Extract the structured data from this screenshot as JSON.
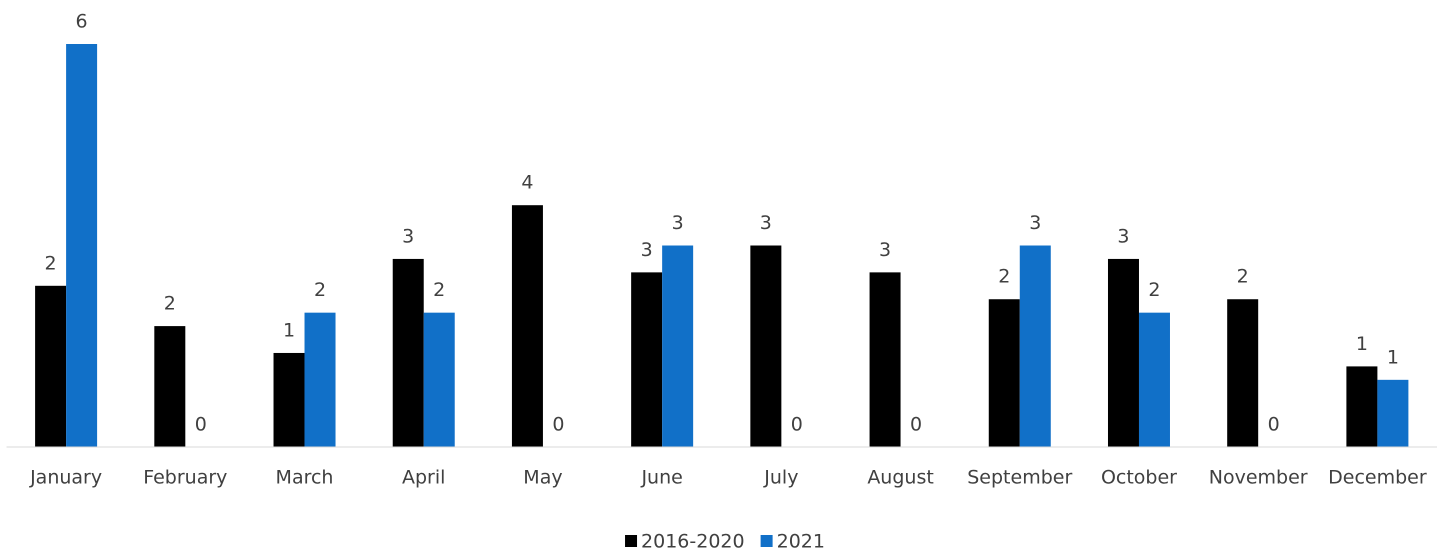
{
  "chart_data": {
    "type": "bar",
    "categories": [
      "January",
      "February",
      "March",
      "April",
      "May",
      "June",
      "July",
      "August",
      "September",
      "October",
      "November",
      "December"
    ],
    "series": [
      {
        "name": "2016-2020",
        "color": "#000000",
        "values": [
          2.4,
          1.8,
          1.4,
          2.8,
          3.6,
          2.6,
          3.0,
          2.6,
          2.2,
          2.8,
          2.2,
          1.2
        ],
        "value_labels": [
          "2",
          "2",
          "1",
          "3",
          "4",
          "3",
          "3",
          "3",
          "2",
          "3",
          "2",
          "1"
        ]
      },
      {
        "name": "2021",
        "color": "#1170c8",
        "values": [
          6,
          0,
          2,
          2,
          0,
          3,
          0,
          0,
          3,
          2,
          0,
          1
        ]
      }
    ],
    "legend": "bottom"
  }
}
